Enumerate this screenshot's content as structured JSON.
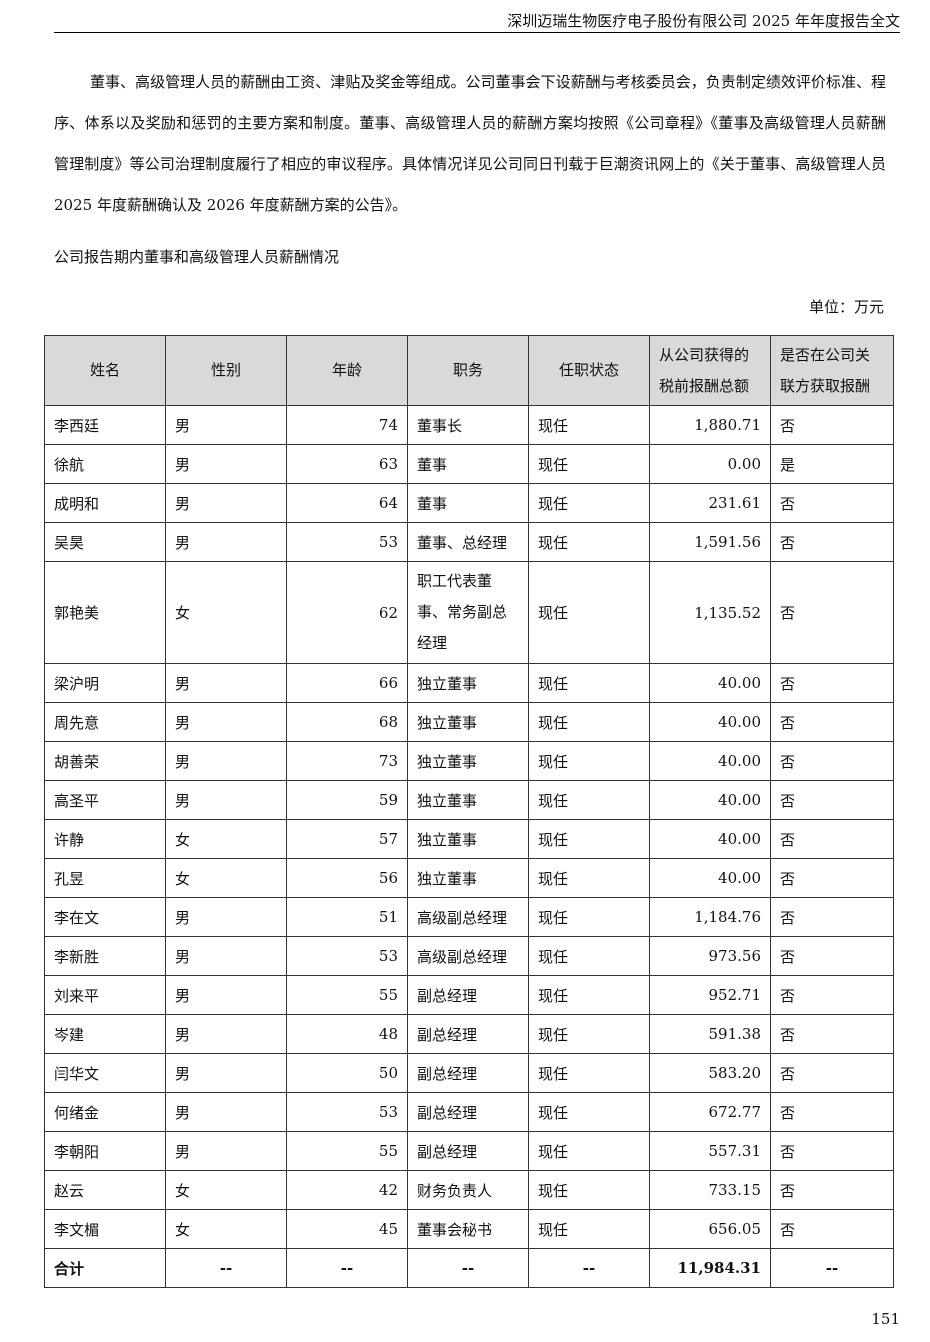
{
  "header": {
    "title": "深圳迈瑞生物医疗电子股份有限公司 2025 年年度报告全文"
  },
  "paragraph": "董事、高级管理人员的薪酬由工资、津贴及奖金等组成。公司董事会下设薪酬与考核委员会，负责制定绩效评价标准、程序、体系以及奖励和惩罚的主要方案和制度。董事、高级管理人员的薪酬方案均按照《公司章程》《董事及高级管理人员薪酬管理制度》等公司治理制度履行了相应的审议程序。具体情况详见公司同日刊载于巨潮资讯网上的《关于董事、高级管理人员 2025 年度薪酬确认及 2026 年度薪酬方案的公告》。",
  "subtitle": "公司报告期内董事和高级管理人员薪酬情况",
  "unit": "单位：万元",
  "table": {
    "columns": [
      "姓名",
      "性别",
      "年龄",
      "职务",
      "任职状态",
      "从公司获得的税前报酬总额",
      "是否在公司关联方获取报酬"
    ],
    "rows": [
      [
        "李西廷",
        "男",
        "74",
        "董事长",
        "现任",
        "1,880.71",
        "否"
      ],
      [
        "徐航",
        "男",
        "63",
        "董事",
        "现任",
        "0.00",
        "是"
      ],
      [
        "成明和",
        "男",
        "64",
        "董事",
        "现任",
        "231.61",
        "否"
      ],
      [
        "吴昊",
        "男",
        "53",
        "董事、总经理",
        "现任",
        "1,591.56",
        "否"
      ],
      [
        "郭艳美",
        "女",
        "62",
        "职工代表董事、常务副总经理",
        "现任",
        "1,135.52",
        "否"
      ],
      [
        "梁沪明",
        "男",
        "66",
        "独立董事",
        "现任",
        "40.00",
        "否"
      ],
      [
        "周先意",
        "男",
        "68",
        "独立董事",
        "现任",
        "40.00",
        "否"
      ],
      [
        "胡善荣",
        "男",
        "73",
        "独立董事",
        "现任",
        "40.00",
        "否"
      ],
      [
        "高圣平",
        "男",
        "59",
        "独立董事",
        "现任",
        "40.00",
        "否"
      ],
      [
        "许静",
        "女",
        "57",
        "独立董事",
        "现任",
        "40.00",
        "否"
      ],
      [
        "孔昱",
        "女",
        "56",
        "独立董事",
        "现任",
        "40.00",
        "否"
      ],
      [
        "李在文",
        "男",
        "51",
        "高级副总经理",
        "现任",
        "1,184.76",
        "否"
      ],
      [
        "李新胜",
        "男",
        "53",
        "高级副总经理",
        "现任",
        "973.56",
        "否"
      ],
      [
        "刘来平",
        "男",
        "55",
        "副总经理",
        "现任",
        "952.71",
        "否"
      ],
      [
        "岑建",
        "男",
        "48",
        "副总经理",
        "现任",
        "591.38",
        "否"
      ],
      [
        "闫华文",
        "男",
        "50",
        "副总经理",
        "现任",
        "583.20",
        "否"
      ],
      [
        "何绪金",
        "男",
        "53",
        "副总经理",
        "现任",
        "672.77",
        "否"
      ],
      [
        "李朝阳",
        "男",
        "55",
        "副总经理",
        "现任",
        "557.31",
        "否"
      ],
      [
        "赵云",
        "女",
        "42",
        "财务负责人",
        "现任",
        "733.15",
        "否"
      ],
      [
        "李文楣",
        "女",
        "45",
        "董事会秘书",
        "现任",
        "656.05",
        "否"
      ]
    ],
    "total": [
      "合计",
      "--",
      "--",
      "--",
      "--",
      "11,984.31",
      "--"
    ]
  },
  "page_number": "151"
}
